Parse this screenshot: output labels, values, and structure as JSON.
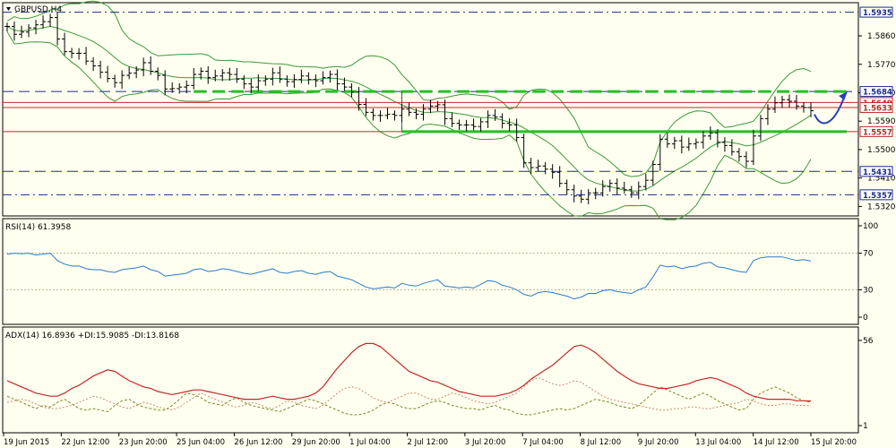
{
  "chart_data": [
    {
      "type": "candlestick",
      "panel": "price",
      "symbol_label": "GBPUSD,H4",
      "ylim": [
        1.529,
        1.5965
      ],
      "y_ticks": [
        1.532,
        1.541,
        1.55,
        1.559,
        1.568,
        1.577,
        1.586
      ],
      "horizontal_levels": [
        {
          "value": 1.5935,
          "style": "dash-dot",
          "color": "#1c2a8a",
          "label": "1.5935",
          "label_bg": "#ffffff"
        },
        {
          "value": 1.5684,
          "style": "dashed",
          "color": "#1c2a8a",
          "label": "1.5684",
          "label_bg": "#ffffff"
        },
        {
          "value": 1.5649,
          "style": "solid",
          "color": "#c0282a",
          "label": "1.5649",
          "label_bg": "#ffffff"
        },
        {
          "value": 1.5633,
          "style": "solid",
          "color": "#c0282a",
          "label": "1.5633",
          "label_bg": "#ffffff"
        },
        {
          "value": 1.5557,
          "style": "solid",
          "color": "#c0282a",
          "label": "1.5557",
          "label_bg": "#ffffff"
        },
        {
          "value": 1.5431,
          "style": "dashed",
          "color": "#1c2a8a",
          "label": "1.5431",
          "label_bg": "#ffffff"
        },
        {
          "value": 1.5357,
          "style": "dash-dot",
          "color": "#1c2a8a",
          "label": "1.5357",
          "label_bg": "#ffffff"
        }
      ],
      "green_zones": [
        {
          "from_bar": 55,
          "top": 1.5684,
          "bottom": 1.5557
        }
      ],
      "closes": [
        1.589,
        1.5865,
        1.5872,
        1.5885,
        1.5895,
        1.5905,
        1.5918,
        1.585,
        1.581,
        1.5805,
        1.5805,
        1.578,
        1.5765,
        1.5745,
        1.5725,
        1.5712,
        1.5735,
        1.5742,
        1.5752,
        1.5775,
        1.5748,
        1.5735,
        1.5692,
        1.5693,
        1.5698,
        1.5703,
        1.5738,
        1.5748,
        1.5728,
        1.5733,
        1.5743,
        1.5738,
        1.5723,
        1.5708,
        1.5698,
        1.5718,
        1.5723,
        1.5743,
        1.5723,
        1.5715,
        1.5722,
        1.5733,
        1.5722,
        1.5718,
        1.5728,
        1.5738,
        1.5708,
        1.5698,
        1.5682,
        1.5643,
        1.5618,
        1.5608,
        1.5608,
        1.5612,
        1.5608,
        1.5628,
        1.5618,
        1.5612,
        1.5628,
        1.5638,
        1.5642,
        1.5598,
        1.5583,
        1.5578,
        1.5578,
        1.5573,
        1.5588,
        1.5608,
        1.5603,
        1.5583,
        1.5578,
        1.5538,
        1.5458,
        1.5443,
        1.5448,
        1.5438,
        1.5428,
        1.5393,
        1.5373,
        1.5353,
        1.5343,
        1.5363,
        1.5363,
        1.5383,
        1.5393,
        1.5378,
        1.5373,
        1.5363,
        1.5383,
        1.5403,
        1.5453,
        1.5533,
        1.5518,
        1.5528,
        1.5508,
        1.5518,
        1.5523,
        1.5543,
        1.5553,
        1.5523,
        1.5513,
        1.5493,
        1.5478,
        1.5463,
        1.5543,
        1.5598,
        1.5628,
        1.5648,
        1.5658,
        1.5653,
        1.5638,
        1.5633,
        1.5623
      ]
    },
    {
      "type": "line",
      "panel": "RSI",
      "label": "RSI(14) 61.3958",
      "ylim": [
        0,
        100
      ],
      "y_ticks": [
        0,
        30,
        70,
        100
      ],
      "levels": [
        30,
        70
      ],
      "values": [
        69,
        70,
        69.5,
        70,
        68,
        69,
        70,
        62,
        58,
        56,
        56,
        53,
        52,
        52,
        50,
        49,
        52,
        53,
        54,
        56,
        52,
        50,
        45,
        46,
        47,
        48,
        52,
        53,
        50,
        51,
        53,
        52,
        50,
        48,
        47,
        49,
        51,
        53,
        49,
        48,
        50,
        51,
        48,
        47,
        49,
        50,
        45,
        43,
        41,
        37,
        33,
        31,
        32,
        33,
        32,
        37,
        35,
        34,
        37,
        39,
        41,
        34,
        33,
        32,
        33,
        32,
        36,
        40,
        39,
        35,
        33,
        30,
        25,
        23,
        27,
        28,
        27,
        25,
        23,
        20,
        22,
        26,
        26,
        29,
        30,
        28,
        27,
        26,
        30,
        33,
        44,
        57,
        55,
        56,
        53,
        55,
        56,
        59,
        60,
        55,
        54,
        52,
        50,
        49,
        62,
        65,
        66,
        66,
        66,
        64,
        62,
        63,
        61.4
      ]
    },
    {
      "type": "line",
      "panel": "ADX",
      "label": "ADX(14) 16.8936 +DI:15.9085 -DI:13.8168",
      "y_ticks": [
        1,
        56
      ],
      "series": [
        {
          "name": "ADX(14)",
          "color": "#c0282a"
        },
        {
          "name": "+DI",
          "color": "#7a8a2a"
        },
        {
          "name": "-DI",
          "color": "#c58a6a"
        }
      ],
      "adx_values": [
        30,
        28,
        26,
        24,
        22,
        21,
        20,
        20,
        22,
        25,
        27,
        30,
        33,
        35,
        37,
        36,
        33,
        30,
        28,
        26,
        25,
        23,
        22,
        21,
        22,
        23,
        24,
        24,
        23,
        22,
        21,
        20,
        19,
        18,
        18,
        18,
        19,
        20,
        19,
        18,
        18,
        19,
        20,
        22,
        26,
        32,
        38,
        43,
        48,
        52,
        54,
        54,
        52,
        48,
        44,
        40,
        36,
        34,
        32,
        30,
        29,
        27,
        25,
        23,
        22,
        21,
        20,
        20,
        20,
        21,
        22,
        24,
        27,
        31,
        34,
        37,
        40,
        44,
        48,
        52,
        53,
        51,
        48,
        44,
        40,
        36,
        33,
        30,
        28,
        27,
        26,
        25,
        25,
        26,
        27,
        28,
        30,
        31,
        32,
        31,
        29,
        27,
        25,
        22,
        20,
        19,
        18,
        18,
        18,
        18,
        17,
        17,
        16.9
      ],
      "plus_di_values": [
        20,
        18,
        16,
        14,
        12,
        14,
        13,
        16,
        18,
        15,
        12,
        11,
        12,
        11,
        10,
        14,
        17,
        18,
        15,
        13,
        12,
        11,
        11,
        14,
        18,
        22,
        21,
        19,
        16,
        15,
        14,
        17,
        19,
        16,
        14,
        13,
        12,
        11,
        10,
        12,
        14,
        16,
        18,
        17,
        15,
        13,
        11,
        9,
        8,
        8,
        9,
        11,
        14,
        16,
        15,
        13,
        12,
        12,
        14,
        16,
        17,
        16,
        14,
        13,
        12,
        12,
        11,
        13,
        14,
        12,
        11,
        9,
        8,
        8,
        9,
        10,
        11,
        12,
        11,
        12,
        14,
        16,
        18,
        17,
        16,
        14,
        13,
        12,
        14,
        18,
        22,
        26,
        24,
        22,
        20,
        18,
        20,
        22,
        20,
        17,
        15,
        13,
        11,
        12,
        18,
        22,
        24,
        26,
        24,
        22,
        19,
        17,
        15.9
      ],
      "minus_di_values": [
        16,
        17,
        18,
        17,
        15,
        13,
        12,
        12,
        13,
        14,
        16,
        18,
        20,
        19,
        17,
        15,
        13,
        12,
        14,
        16,
        15,
        13,
        12,
        11,
        13,
        16,
        19,
        22,
        20,
        18,
        16,
        14,
        13,
        14,
        16,
        15,
        13,
        12,
        14,
        17,
        16,
        14,
        13,
        12,
        14,
        18,
        22,
        25,
        26,
        25,
        22,
        19,
        17,
        16,
        18,
        20,
        22,
        22,
        20,
        18,
        18,
        20,
        22,
        21,
        19,
        17,
        16,
        15,
        16,
        18,
        20,
        22,
        26,
        30,
        32,
        30,
        28,
        27,
        28,
        30,
        29,
        26,
        23,
        20,
        18,
        17,
        16,
        15,
        14,
        13,
        12,
        11,
        11,
        12,
        12,
        13,
        13,
        12,
        12,
        13,
        14,
        15,
        16,
        18,
        17,
        15,
        14,
        14,
        15,
        15,
        14,
        14,
        13.8
      ]
    }
  ],
  "x_axis": {
    "labels": [
      "19 Jun 2015",
      "22 Jun 12:00",
      "23 Jun 20:00",
      "25 Jun 04:00",
      "26 Jun 12:00",
      "29 Jun 20:00",
      "1 Jul 04:00",
      "2 Jul 12:00",
      "3 Jul 20:00",
      "7 Jul 04:00",
      "8 Jul 12:00",
      "9 Jul 20:00",
      "13 Jul 04:00",
      "14 Jul 12:00",
      "15 Jul 20:00"
    ]
  },
  "colors": {
    "background": "#fffff0",
    "axis_text": "#000000",
    "candle": "#000000",
    "bollinger": "#3a9a3a",
    "green_zone": "#22c222",
    "arrow": "#2840b8",
    "rsi_line": "#2a7acc",
    "rsi_level": "#b5b58a",
    "adx_line": "#c0282a",
    "plus_di": "#7a8a2a",
    "minus_di": "#c58a6a"
  }
}
